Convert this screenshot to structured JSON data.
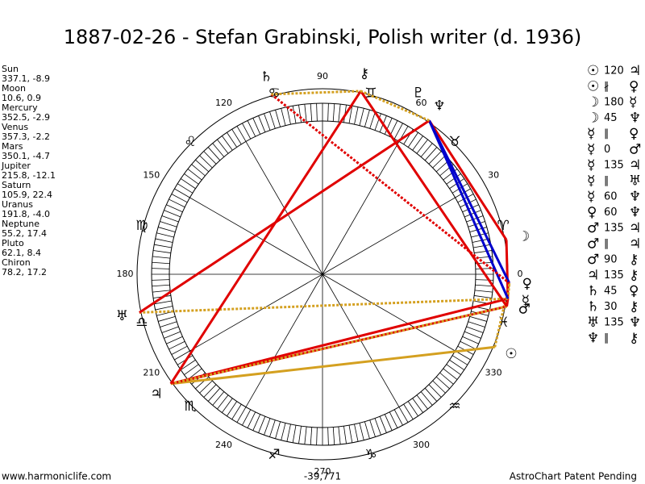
{
  "title": "1887-02-26 - Stefan Grabinski, Polish writer (d. 1936)",
  "planets": [
    {
      "name": "Sun",
      "coords": "337.1, -8.9",
      "glyph": "☉"
    },
    {
      "name": "Moon",
      "coords": "10.6, 0.9",
      "glyph": "☽"
    },
    {
      "name": "Mercury",
      "coords": "352.5, -2.9",
      "glyph": "☿"
    },
    {
      "name": "Venus",
      "coords": "357.3, -2.2",
      "glyph": "♀"
    },
    {
      "name": "Mars",
      "coords": "350.1, -4.7",
      "glyph": "♂"
    },
    {
      "name": "Jupiter",
      "coords": "215.8, -12.1",
      "glyph": "♃"
    },
    {
      "name": "Saturn",
      "coords": "105.9, 22.4",
      "glyph": "♄"
    },
    {
      "name": "Uranus",
      "coords": "191.8, -4.0",
      "glyph": "♅"
    },
    {
      "name": "Neptune",
      "coords": "55.2, 17.4",
      "glyph": "♆"
    },
    {
      "name": "Pluto",
      "coords": "62.1, 8.4",
      "glyph": "♇"
    },
    {
      "name": "Chiron",
      "coords": "78.2, 17.2",
      "glyph": "⚷"
    }
  ],
  "aspects": [
    {
      "a": "☉",
      "kind": "120",
      "b": "♃",
      "color": "#d4a020",
      "dashed": false
    },
    {
      "a": "☉",
      "kind": "∦",
      "b": "♀",
      "color": "#d4a020",
      "dashed": true
    },
    {
      "a": "☽",
      "kind": "180",
      "b": "☿",
      "color": "#e00000",
      "dashed": false
    },
    {
      "a": "☽",
      "kind": "45",
      "b": "♆",
      "color": "#e00000",
      "dashed": false
    },
    {
      "a": "☿",
      "kind": "∥",
      "b": "♀",
      "color": "#d4a020",
      "dashed": true
    },
    {
      "a": "☿",
      "kind": "0",
      "b": "♂",
      "color": "#e00000",
      "dashed": false
    },
    {
      "a": "☿",
      "kind": "135",
      "b": "♃",
      "color": "#e00000",
      "dashed": false
    },
    {
      "a": "☿",
      "kind": "∥",
      "b": "♅",
      "color": "#d4a020",
      "dashed": true
    },
    {
      "a": "☿",
      "kind": "60",
      "b": "♆",
      "color": "#0000cc",
      "dashed": false
    },
    {
      "a": "♀",
      "kind": "60",
      "b": "♆",
      "color": "#0000cc",
      "dashed": false
    },
    {
      "a": "♂",
      "kind": "135",
      "b": "♃",
      "color": "#e00000",
      "dashed": false
    },
    {
      "a": "♂",
      "kind": "∥",
      "b": "♃",
      "color": "#d4a020",
      "dashed": true
    },
    {
      "a": "♂",
      "kind": "90",
      "b": "⚷",
      "color": "#e00000",
      "dashed": false
    },
    {
      "a": "♃",
      "kind": "135",
      "b": "⚷",
      "color": "#e00000",
      "dashed": false
    },
    {
      "a": "♄",
      "kind": "45",
      "b": "♀",
      "color": "#e00000",
      "dashed": true
    },
    {
      "a": "♄",
      "kind": "30",
      "b": "⚷",
      "color": "#d4a020",
      "dashed": true
    },
    {
      "a": "♅",
      "kind": "135",
      "b": "♆",
      "color": "#e00000",
      "dashed": false
    },
    {
      "a": "♆",
      "kind": "∥",
      "b": "⚷",
      "color": "#d4a020",
      "dashed": true
    }
  ],
  "degree_labels": [
    0,
    30,
    60,
    90,
    120,
    150,
    180,
    210,
    240,
    270,
    300,
    330
  ],
  "signs": [
    "♈",
    "♉",
    "♊",
    "♋",
    "♌",
    "♍",
    "♎",
    "♏",
    "♐",
    "♑",
    "♒",
    "♓"
  ],
  "footer": {
    "left": "www.harmoniclife.com",
    "center": "-39,771",
    "right": "AstroChart Patent Pending"
  }
}
